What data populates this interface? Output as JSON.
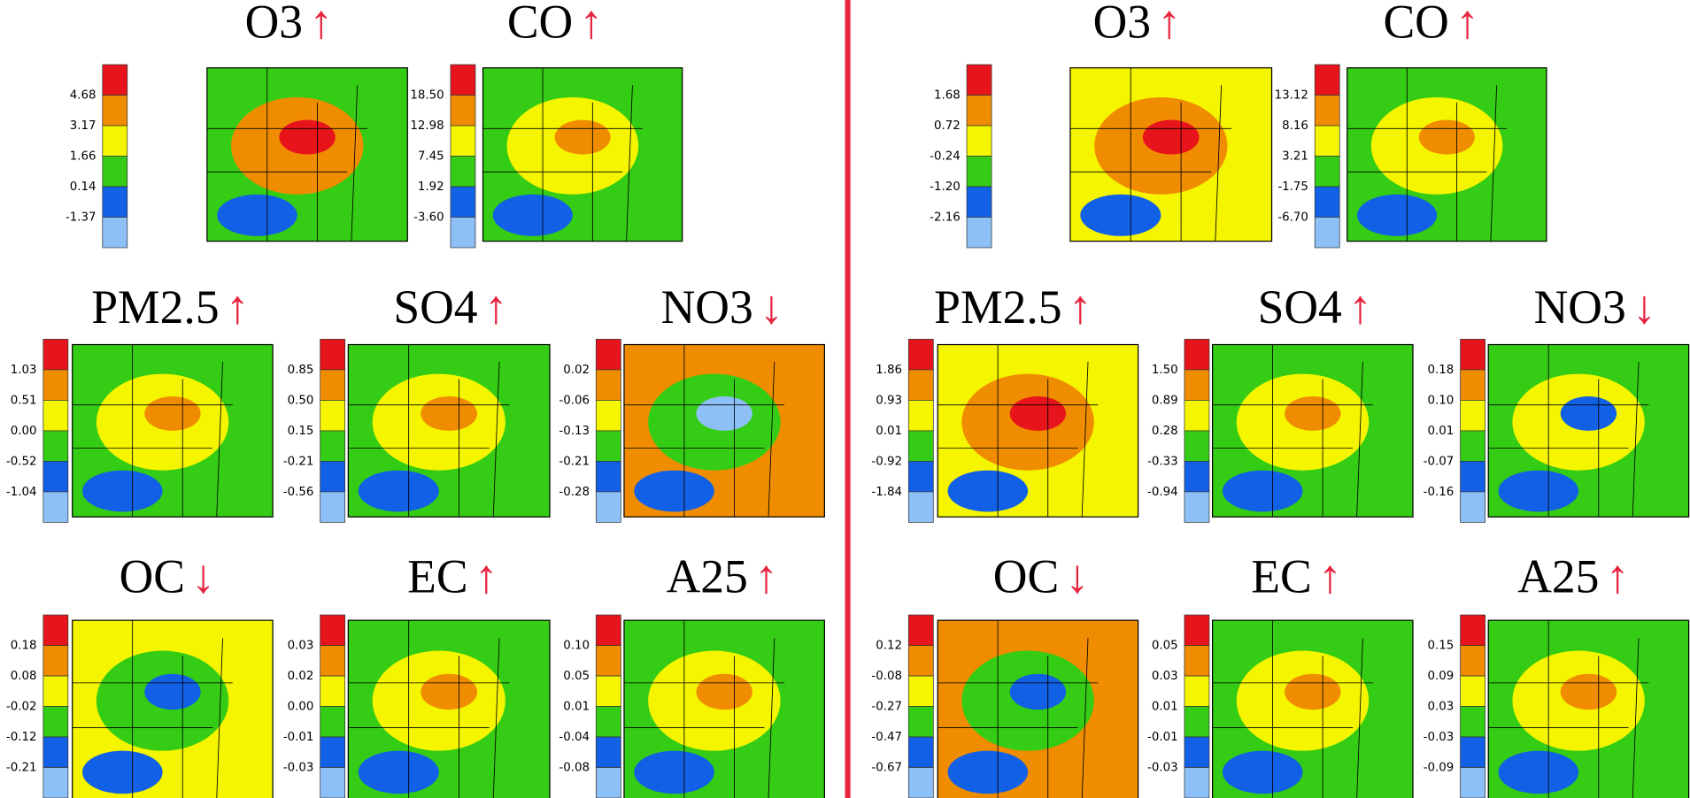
{
  "panels": [
    {
      "maps": [
        {
          "title": "O3",
          "arrow": "↑",
          "levels": [
            "4.68",
            "3.17",
            "1.66",
            "0.14",
            "-1.37"
          ]
        },
        {
          "title": "CO",
          "arrow": "↑",
          "levels": [
            "18.50",
            "12.98",
            "7.45",
            "1.92",
            "-3.60"
          ]
        },
        {
          "title": "PM2.5",
          "arrow": "↑",
          "levels": [
            "1.03",
            "0.51",
            "0.00",
            "-0.52",
            "-1.04"
          ]
        },
        {
          "title": "SO4",
          "arrow": "↑",
          "levels": [
            "0.85",
            "0.50",
            "0.15",
            "-0.21",
            "-0.56"
          ]
        },
        {
          "title": "NO3",
          "arrow": "↓",
          "levels": [
            "0.02",
            "-0.06",
            "-0.13",
            "-0.21",
            "-0.28"
          ]
        },
        {
          "title": "OC",
          "arrow": "↓",
          "levels": [
            "0.18",
            "0.08",
            "-0.02",
            "-0.12",
            "-0.21"
          ]
        },
        {
          "title": "EC",
          "arrow": "↑",
          "levels": [
            "0.03",
            "0.02",
            "0.00",
            "-0.01",
            "-0.03"
          ]
        },
        {
          "title": "A25",
          "arrow": "↑",
          "levels": [
            "0.10",
            "0.05",
            "0.01",
            "-0.04",
            "-0.08"
          ]
        }
      ]
    },
    {
      "maps": [
        {
          "title": "O3",
          "arrow": "↑",
          "levels": [
            "1.68",
            "0.72",
            "-0.24",
            "-1.20",
            "-2.16"
          ]
        },
        {
          "title": "CO",
          "arrow": "↑",
          "levels": [
            "13.12",
            "8.16",
            "3.21",
            "-1.75",
            "-6.70"
          ]
        },
        {
          "title": "PM2.5",
          "arrow": "↑",
          "levels": [
            "1.86",
            "0.93",
            "0.01",
            "-0.92",
            "-1.84"
          ]
        },
        {
          "title": "SO4",
          "arrow": "↑",
          "levels": [
            "1.50",
            "0.89",
            "0.28",
            "-0.33",
            "-0.94"
          ]
        },
        {
          "title": "NO3",
          "arrow": "↓",
          "levels": [
            "0.18",
            "0.10",
            "0.01",
            "-0.07",
            "-0.16"
          ]
        },
        {
          "title": "OC",
          "arrow": "↓",
          "levels": [
            "0.12",
            "-0.08",
            "-0.27",
            "-0.47",
            "-0.67"
          ]
        },
        {
          "title": "EC",
          "arrow": "↑",
          "levels": [
            "0.05",
            "0.03",
            "0.01",
            "-0.01",
            "-0.03"
          ]
        },
        {
          "title": "A25",
          "arrow": "↑",
          "levels": [
            "0.15",
            "0.09",
            "0.03",
            "-0.03",
            "-0.09"
          ]
        }
      ]
    }
  ]
}
